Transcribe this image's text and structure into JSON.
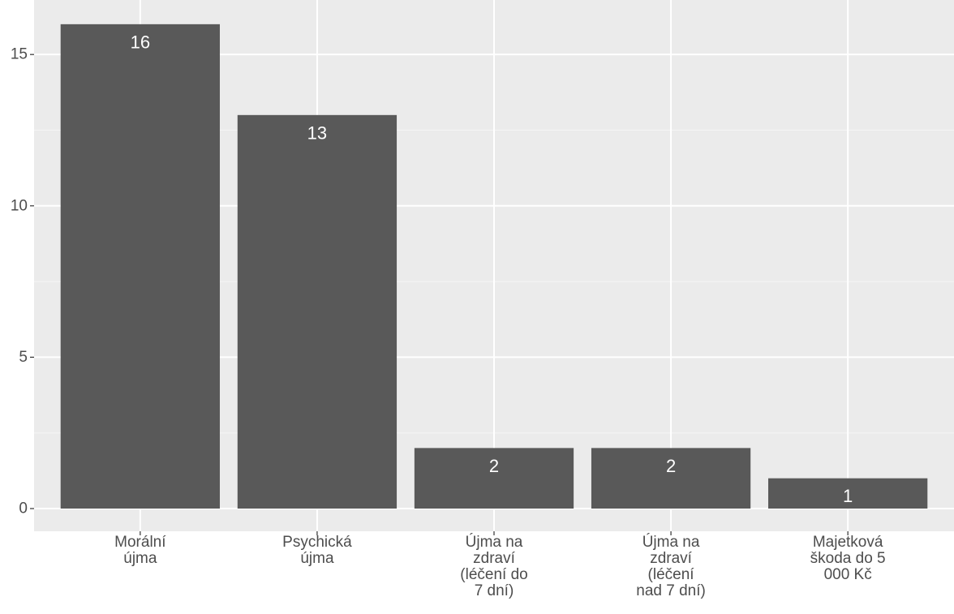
{
  "chart_data": {
    "type": "bar",
    "categories": [
      [
        "Morální",
        "újma"
      ],
      [
        "Psychická",
        "újma"
      ],
      [
        "Újma na",
        "zdraví",
        "(léčení do",
        "7 dní)"
      ],
      [
        "Újma na",
        "zdraví",
        "(léčení",
        "nad 7 dní)"
      ],
      [
        "Majetková",
        "škoda do 5",
        "000 Kč"
      ]
    ],
    "values": [
      16,
      13,
      2,
      2,
      1
    ],
    "data_labels": [
      "16",
      "13",
      "2",
      "2",
      "1"
    ],
    "title": "",
    "xlabel": "",
    "ylabel": "",
    "ylim": [
      -0.75,
      16.8
    ],
    "y_ticks": [
      0,
      5,
      10,
      15
    ],
    "y_tick_labels": [
      "0",
      "5",
      "10",
      "15"
    ],
    "grid": true,
    "legend": "none",
    "colors": {
      "panel": "#ebebeb",
      "grid_major": "#ffffff",
      "grid_minor": "#f5f5f5",
      "bar": "#595959",
      "label": "#ffffff",
      "axis_text": "#4d4d4d",
      "tick": "#333333"
    }
  }
}
